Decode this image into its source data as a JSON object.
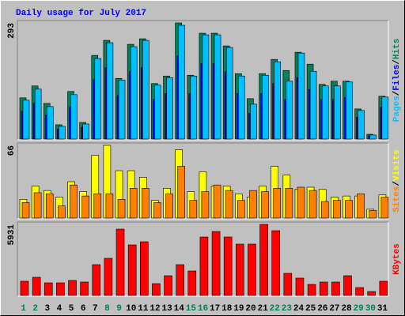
{
  "chart_data": [
    {
      "type": "bar",
      "title": "Daily usage for July 2017",
      "ylim": [
        0,
        293
      ],
      "yticks": [
        293
      ],
      "legend_separator": "/",
      "series": [
        {
          "name": "Hits",
          "color": "#00805c",
          "values": [
            104,
            134,
            90,
            36,
            120,
            42,
            211,
            249,
            153,
            239,
            253,
            140,
            159,
            293,
            161,
            267,
            267,
            235,
            165,
            102,
            165,
            201,
            173,
            219,
            189,
            138,
            146,
            146,
            76,
            12,
            108
          ]
        },
        {
          "name": "Files",
          "color": "#0000ff",
          "values": [
            70,
            90,
            60,
            25,
            80,
            30,
            150,
            180,
            110,
            170,
            180,
            100,
            115,
            210,
            115,
            190,
            190,
            170,
            115,
            65,
            115,
            140,
            100,
            155,
            125,
            100,
            100,
            105,
            55,
            8,
            80
          ]
        },
        {
          "name": "Pages",
          "color": "#00c0ff",
          "values": [
            98,
            126,
            82,
            32,
            112,
            38,
            203,
            243,
            149,
            233,
            249,
            136,
            155,
            287,
            159,
            263,
            263,
            231,
            159,
            88,
            161,
            195,
            146,
            217,
            171,
            134,
            134,
            144,
            72,
            10,
            106
          ]
        }
      ]
    },
    {
      "type": "bar",
      "ylim": [
        0,
        66
      ],
      "yticks": [
        66
      ],
      "legend_separator": "/",
      "series": [
        {
          "name": "Visits",
          "color": "#ffff00",
          "values": [
            17,
            29,
            25,
            19,
            33,
            24,
            57,
            66,
            43,
            43,
            37,
            16,
            27,
            62,
            24,
            42,
            29,
            29,
            22,
            19,
            29,
            47,
            39,
            26,
            28,
            26,
            19,
            20,
            20,
            8,
            21
          ]
        },
        {
          "name": "Sites",
          "color": "#ff8000",
          "values": [
            14,
            23,
            22,
            11,
            30,
            20,
            22,
            22,
            17,
            27,
            27,
            14,
            22,
            47,
            16,
            24,
            30,
            25,
            16,
            25,
            24,
            27,
            27,
            28,
            25,
            15,
            16,
            16,
            22,
            7,
            19
          ]
        }
      ]
    },
    {
      "type": "bar",
      "ylim": [
        0,
        5931
      ],
      "yticks": [
        5931
      ],
      "categories": [
        "1",
        "2",
        "3",
        "4",
        "5",
        "6",
        "7",
        "8",
        "9",
        "10",
        "11",
        "12",
        "13",
        "14",
        "15",
        "16",
        "17",
        "18",
        "19",
        "20",
        "21",
        "22",
        "23",
        "24",
        "25",
        "26",
        "27",
        "28",
        "29",
        "30",
        "31"
      ],
      "category_colors": [
        "#00805c",
        "#00805c",
        "#000000",
        "#000000",
        "#000000",
        "#000000",
        "#000000",
        "#00805c",
        "#00805c",
        "#000000",
        "#000000",
        "#000000",
        "#000000",
        "#000000",
        "#00805c",
        "#00805c",
        "#000000",
        "#000000",
        "#000000",
        "#000000",
        "#000000",
        "#00805c",
        "#00805c",
        "#000000",
        "#000000",
        "#000000",
        "#000000",
        "#000000",
        "#00805c",
        "#00805c",
        "#000000"
      ],
      "series": [
        {
          "name": "KBytes",
          "color": "#ff0000",
          "values": [
            1186,
            1516,
            1054,
            1054,
            1252,
            1120,
            2570,
            3097,
            5535,
            4217,
            4481,
            988,
            1647,
            2570,
            2043,
            4876,
            5338,
            4876,
            4283,
            4283,
            5931,
            5403,
            1845,
            1450,
            923,
            1120,
            1120,
            1647,
            659,
            329,
            1186
          ]
        }
      ]
    }
  ]
}
